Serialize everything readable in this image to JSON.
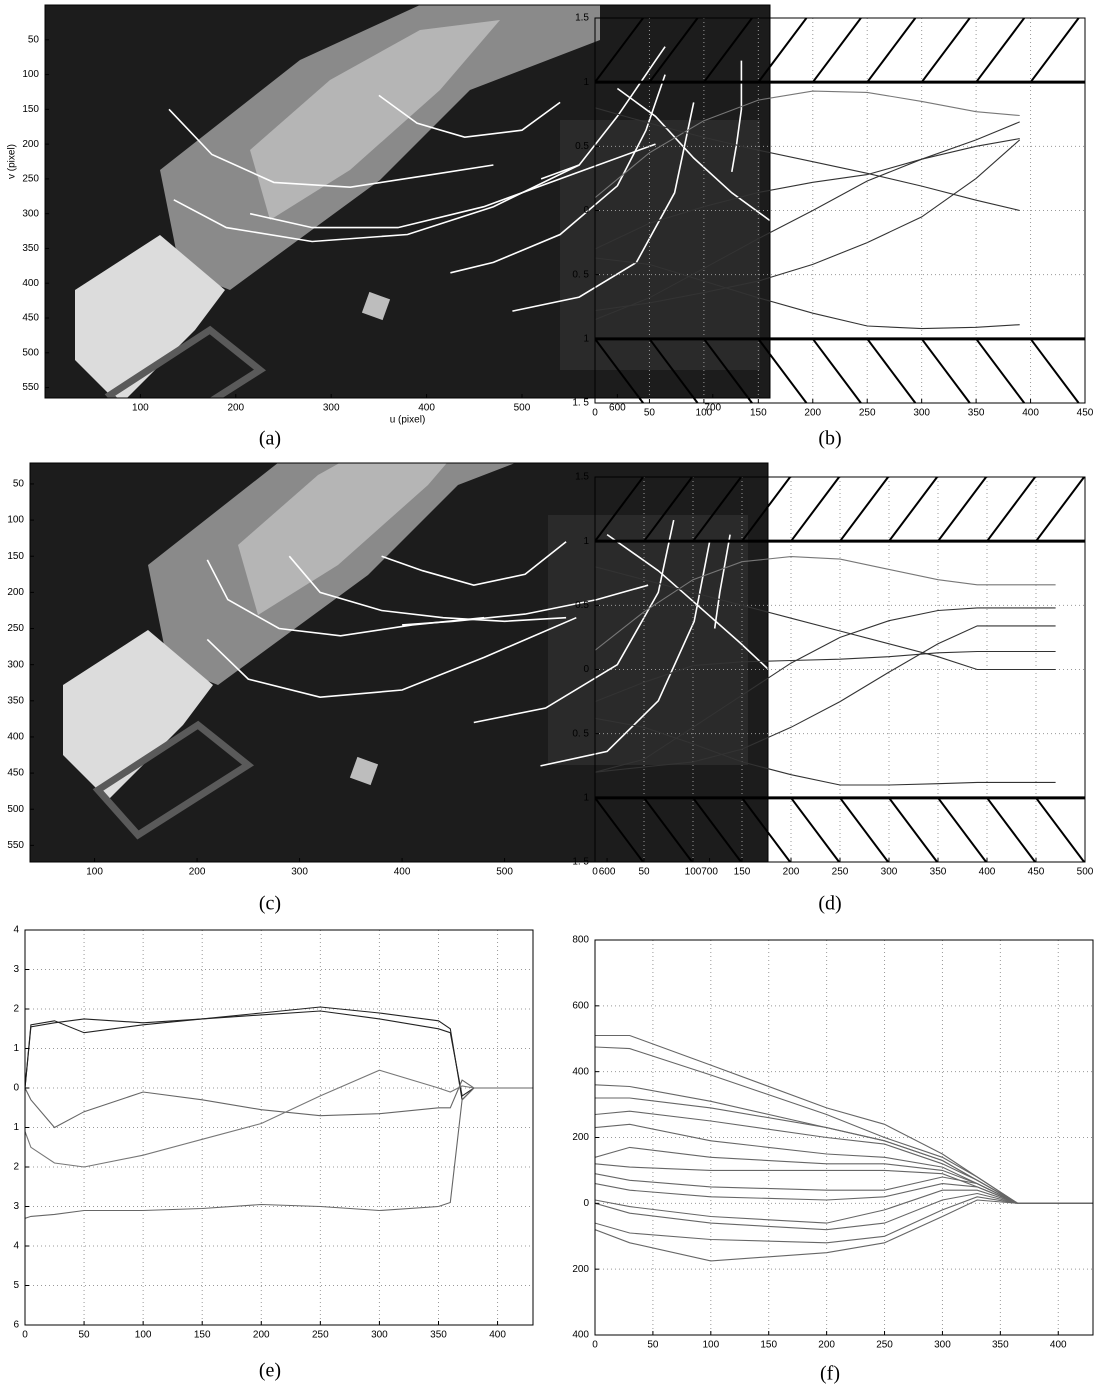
{
  "chart_data": [
    {
      "type": "image",
      "caption": "(a)",
      "xlabel": "u (pixel)",
      "ylabel": "v (pixel)",
      "xlim": [
        0,
        760
      ],
      "ylim": [
        0,
        565
      ],
      "yreverse": true,
      "grid": false,
      "xticks": [
        100,
        200,
        300,
        400,
        500,
        600,
        700
      ],
      "yticks": [
        50,
        100,
        150,
        200,
        250,
        300,
        350,
        400,
        450,
        500,
        550
      ],
      "series": [
        {
          "color": "#ffffff",
          "x": [
            130,
            175,
            240,
            320,
            400,
            470
          ],
          "values": [
            150,
            215,
            255,
            262,
            245,
            230
          ]
        },
        {
          "color": "#ffffff",
          "x": [
            135,
            190,
            280,
            380,
            470,
            560
          ],
          "values": [
            280,
            320,
            340,
            330,
            290,
            230
          ]
        },
        {
          "color": "#ffffff",
          "x": [
            350,
            390,
            440,
            500,
            540
          ],
          "values": [
            130,
            170,
            190,
            180,
            140
          ]
        },
        {
          "color": "#ffffff",
          "x": [
            215,
            280,
            370,
            460,
            560,
            640
          ],
          "values": [
            300,
            320,
            320,
            290,
            240,
            200
          ]
        },
        {
          "color": "#ffffff",
          "x": [
            425,
            470,
            540,
            600,
            630,
            650
          ],
          "values": [
            385,
            370,
            330,
            260,
            180,
            100
          ]
        },
        {
          "color": "#ffffff",
          "x": [
            490,
            560,
            620,
            660,
            680
          ],
          "values": [
            440,
            420,
            370,
            270,
            140
          ]
        },
        {
          "color": "#ffffff",
          "x": [
            520,
            560,
            600,
            640,
            650
          ],
          "values": [
            250,
            230,
            160,
            80,
            60
          ]
        },
        {
          "color": "#ffffff",
          "x": [
            600,
            640,
            680,
            720,
            760
          ],
          "values": [
            120,
            160,
            220,
            270,
            310
          ]
        },
        {
          "color": "#ffffff",
          "x": [
            730,
            730,
            725,
            720
          ],
          "values": [
            80,
            150,
            200,
            240
          ]
        }
      ]
    },
    {
      "type": "line",
      "caption": "(b)",
      "xlim": [
        0,
        450
      ],
      "ylim": [
        -1.5,
        1.5
      ],
      "grid": true,
      "limits": [
        -1,
        1
      ],
      "xticks": [
        0,
        50,
        100,
        150,
        200,
        250,
        300,
        350,
        400,
        450
      ],
      "yticks": [
        {
          "value": -1.5,
          "label": "1. 5"
        },
        {
          "value": -1,
          "label": "1"
        },
        {
          "value": -0.5,
          "label": "0. 5"
        },
        0,
        0.5,
        1,
        1.5
      ],
      "x": [
        0,
        50,
        100,
        150,
        200,
        250,
        300,
        350,
        390
      ],
      "series": [
        {
          "color": "#777777",
          "values": [
            0.1,
            0.45,
            0.7,
            0.86,
            0.93,
            0.92,
            0.85,
            0.77,
            0.74
          ]
        },
        {
          "color": "#333333",
          "values": [
            0.8,
            0.68,
            0.57,
            0.47,
            0.38,
            0.29,
            0.19,
            0.08,
            0.0
          ]
        },
        {
          "color": "#333333",
          "values": [
            -0.3,
            -0.1,
            0.03,
            0.14,
            0.22,
            0.28,
            0.4,
            0.55,
            0.69
          ]
        },
        {
          "color": "#333333",
          "values": [
            -0.85,
            -0.68,
            -0.45,
            -0.22,
            0.0,
            0.23,
            0.4,
            0.5,
            0.56
          ]
        },
        {
          "color": "#333333",
          "values": [
            -0.78,
            -0.72,
            -0.64,
            -0.55,
            -0.42,
            -0.25,
            -0.05,
            0.25,
            0.55
          ]
        },
        {
          "color": "#333333",
          "values": [
            -0.37,
            -0.42,
            -0.55,
            -0.68,
            -0.8,
            -0.9,
            -0.92,
            -0.91,
            -0.89
          ]
        }
      ]
    },
    {
      "type": "image",
      "caption": "(c)",
      "xlim": [
        37,
        757
      ],
      "ylim": [
        21,
        573
      ],
      "yreverse": true,
      "grid": false,
      "xticks": [
        100,
        200,
        300,
        400,
        500,
        600,
        700
      ],
      "yticks": [
        50,
        100,
        150,
        200,
        250,
        300,
        350,
        400,
        450,
        500,
        550
      ],
      "series": [
        {
          "color": "#ffffff",
          "x": [
            210,
            230,
            280,
            340,
            410,
            480
          ],
          "values": [
            155,
            210,
            250,
            260,
            245,
            235
          ]
        },
        {
          "color": "#ffffff",
          "x": [
            210,
            250,
            320,
            400,
            480,
            570
          ],
          "values": [
            265,
            320,
            345,
            335,
            290,
            235
          ]
        },
        {
          "color": "#ffffff",
          "x": [
            290,
            320,
            380,
            440,
            500,
            560
          ],
          "values": [
            150,
            200,
            225,
            235,
            240,
            235
          ]
        },
        {
          "color": "#ffffff",
          "x": [
            380,
            420,
            470,
            520,
            560
          ],
          "values": [
            150,
            170,
            190,
            175,
            130
          ]
        },
        {
          "color": "#ffffff",
          "x": [
            400,
            450,
            520,
            590,
            640
          ],
          "values": [
            245,
            240,
            230,
            210,
            190
          ]
        },
        {
          "color": "#ffffff",
          "x": [
            470,
            540,
            610,
            650,
            665
          ],
          "values": [
            380,
            360,
            300,
            200,
            100
          ]
        },
        {
          "color": "#ffffff",
          "x": [
            535,
            600,
            650,
            685,
            700
          ],
          "values": [
            440,
            420,
            350,
            240,
            130
          ]
        },
        {
          "color": "#ffffff",
          "x": [
            600,
            650,
            690,
            730,
            760
          ],
          "values": [
            120,
            170,
            220,
            270,
            310
          ]
        },
        {
          "color": "#ffffff",
          "x": [
            720,
            715,
            710,
            705
          ],
          "values": [
            120,
            160,
            200,
            250
          ]
        }
      ]
    },
    {
      "type": "line",
      "caption": "(d)",
      "xlim": [
        0,
        500
      ],
      "ylim": [
        -1.5,
        1.5
      ],
      "grid": true,
      "limits": [
        -1,
        1
      ],
      "xticks": [
        0,
        50,
        100,
        150,
        200,
        250,
        300,
        350,
        400,
        450,
        500
      ],
      "yticks": [
        {
          "value": -1.5,
          "label": "1. 5"
        },
        {
          "value": -1,
          "label": "1"
        },
        {
          "value": -0.5,
          "label": "0. 5"
        },
        0,
        0.5,
        1,
        1.5
      ],
      "x": [
        0,
        50,
        100,
        150,
        200,
        250,
        300,
        350,
        390,
        430,
        470
      ],
      "series": [
        {
          "color": "#777777",
          "values": [
            0.15,
            0.45,
            0.7,
            0.84,
            0.88,
            0.86,
            0.78,
            0.7,
            0.66,
            0.66,
            0.66
          ]
        },
        {
          "color": "#333333",
          "values": [
            0.8,
            0.7,
            0.6,
            0.5,
            0.4,
            0.3,
            0.2,
            0.1,
            0.0,
            0.0,
            0.0
          ]
        },
        {
          "color": "#333333",
          "values": [
            -0.25,
            -0.1,
            0.03,
            0.06,
            0.07,
            0.08,
            0.1,
            0.13,
            0.14,
            0.14,
            0.14
          ]
        },
        {
          "color": "#333333",
          "values": [
            -0.8,
            -0.7,
            -0.45,
            -0.2,
            0.05,
            0.25,
            0.38,
            0.46,
            0.48,
            0.48,
            0.48
          ]
        },
        {
          "color": "#333333",
          "values": [
            -0.8,
            -0.76,
            -0.72,
            -0.62,
            -0.45,
            -0.25,
            -0.02,
            0.2,
            0.34,
            0.34,
            0.34
          ]
        },
        {
          "color": "#333333",
          "values": [
            -0.38,
            -0.45,
            -0.58,
            -0.72,
            -0.82,
            -0.9,
            -0.9,
            -0.89,
            -0.88,
            -0.88,
            -0.88
          ]
        }
      ]
    },
    {
      "type": "line",
      "caption": "(e)",
      "xlim": [
        0,
        430
      ],
      "ylim": [
        -6,
        4
      ],
      "grid": true,
      "xticks": [
        0,
        50,
        100,
        150,
        200,
        250,
        300,
        350,
        400
      ],
      "yticks": [
        {
          "value": -6,
          "label": "6"
        },
        {
          "value": -5,
          "label": "5"
        },
        {
          "value": -4,
          "label": "4"
        },
        {
          "value": -3,
          "label": "3"
        },
        {
          "value": -2,
          "label": "2"
        },
        {
          "value": -1,
          "label": "1"
        },
        0,
        1,
        2,
        3,
        4
      ],
      "x": [
        0,
        5,
        25,
        50,
        100,
        150,
        200,
        250,
        300,
        350,
        360,
        370,
        380,
        430
      ],
      "series": [
        {
          "color": "#222222",
          "values": [
            0,
            1.55,
            1.65,
            1.75,
            1.65,
            1.75,
            1.85,
            1.95,
            1.75,
            1.5,
            1.4,
            -0.2,
            0,
            0
          ]
        },
        {
          "color": "#222222",
          "values": [
            0,
            1.6,
            1.7,
            1.4,
            1.6,
            1.75,
            1.9,
            2.05,
            1.9,
            1.7,
            1.5,
            -0.3,
            0,
            0
          ]
        },
        {
          "color": "#666666",
          "values": [
            0,
            -0.3,
            -1.0,
            -0.6,
            -0.1,
            -0.3,
            -0.55,
            -0.7,
            -0.65,
            -0.5,
            -0.5,
            0.2,
            0,
            0
          ]
        },
        {
          "color": "#777777",
          "values": [
            -1.1,
            -1.5,
            -1.9,
            -2.0,
            -1.7,
            -1.3,
            -0.9,
            -0.2,
            0.45,
            0.0,
            -0.1,
            0.05,
            0,
            0
          ]
        },
        {
          "color": "#666666",
          "values": [
            -3.3,
            -3.25,
            -3.2,
            -3.1,
            -3.1,
            -3.05,
            -2.95,
            -3.0,
            -3.1,
            -3.0,
            -2.9,
            -0.3,
            0,
            0
          ]
        }
      ]
    },
    {
      "type": "line",
      "caption": "(f)",
      "xlim": [
        0,
        430
      ],
      "ylim": [
        -400,
        800
      ],
      "grid": true,
      "xticks": [
        0,
        50,
        100,
        150,
        200,
        250,
        300,
        350,
        400
      ],
      "yticks": [
        {
          "value": -400,
          "label": "400"
        },
        {
          "value": -200,
          "label": "200"
        },
        0,
        200,
        400,
        600,
        800
      ],
      "x": [
        0,
        30,
        100,
        200,
        250,
        300,
        330,
        365,
        430
      ],
      "series": [
        {
          "color": "#666666",
          "values": [
            510,
            510,
            420,
            290,
            240,
            150,
            80,
            0,
            0
          ]
        },
        {
          "color": "#666666",
          "values": [
            475,
            470,
            390,
            270,
            200,
            140,
            80,
            0,
            0
          ]
        },
        {
          "color": "#666666",
          "values": [
            360,
            355,
            310,
            230,
            190,
            130,
            70,
            0,
            0
          ]
        },
        {
          "color": "#666666",
          "values": [
            320,
            320,
            290,
            230,
            190,
            130,
            70,
            0,
            0
          ]
        },
        {
          "color": "#666666",
          "values": [
            270,
            280,
            250,
            200,
            180,
            120,
            70,
            0,
            0
          ]
        },
        {
          "color": "#666666",
          "values": [
            230,
            240,
            190,
            150,
            140,
            110,
            60,
            0,
            0
          ]
        },
        {
          "color": "#666666",
          "values": [
            140,
            170,
            140,
            120,
            120,
            100,
            60,
            0,
            0
          ]
        },
        {
          "color": "#666666",
          "values": [
            120,
            110,
            100,
            100,
            100,
            90,
            50,
            0,
            0
          ]
        },
        {
          "color": "#666666",
          "values": [
            90,
            70,
            50,
            40,
            40,
            80,
            60,
            0,
            0
          ]
        },
        {
          "color": "#666666",
          "values": [
            60,
            40,
            20,
            10,
            20,
            60,
            50,
            0,
            0
          ]
        },
        {
          "color": "#666666",
          "values": [
            10,
            -10,
            -40,
            -60,
            -20,
            40,
            40,
            0,
            0
          ]
        },
        {
          "color": "#666666",
          "values": [
            0,
            -30,
            -60,
            -80,
            -60,
            10,
            30,
            0,
            0
          ]
        },
        {
          "color": "#666666",
          "values": [
            -60,
            -90,
            -110,
            -120,
            -100,
            -20,
            20,
            0,
            0
          ]
        },
        {
          "color": "#666666",
          "values": [
            -80,
            -120,
            -175,
            -150,
            -120,
            -40,
            10,
            0,
            0
          ]
        }
      ]
    }
  ]
}
